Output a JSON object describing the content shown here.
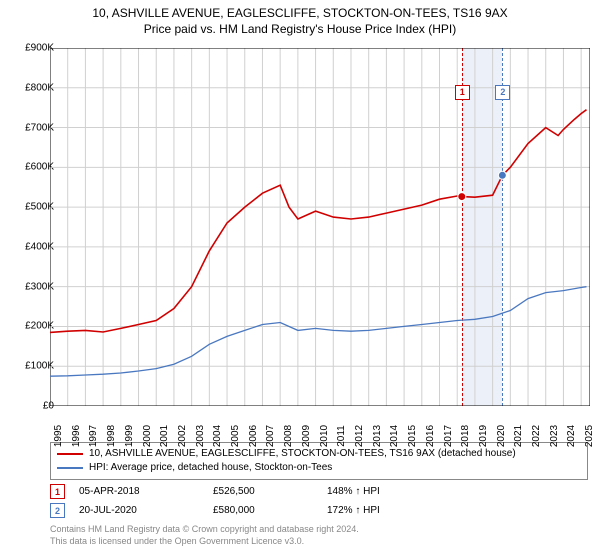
{
  "title_line1": "10, ASHVILLE AVENUE, EAGLESCLIFFE, STOCKTON-ON-TEES, TS16 9AX",
  "title_line2": "Price paid vs. HM Land Registry's House Price Index (HPI)",
  "chart": {
    "type": "line",
    "background_color": "#ffffff",
    "grid_color": "#d0d0d0",
    "xlim_years": [
      1995,
      2025.5
    ],
    "ylim": [
      0,
      900000
    ],
    "ytick_step": 100000,
    "yticks": [
      "£0",
      "£100K",
      "£200K",
      "£300K",
      "£400K",
      "£500K",
      "£600K",
      "£700K",
      "£800K",
      "£900K"
    ],
    "xticks": [
      "1995",
      "1996",
      "1997",
      "1998",
      "1999",
      "2000",
      "2001",
      "2002",
      "2003",
      "2004",
      "2005",
      "2006",
      "2007",
      "2008",
      "2009",
      "2010",
      "2011",
      "2012",
      "2013",
      "2014",
      "2015",
      "2016",
      "2017",
      "2018",
      "2019",
      "2020",
      "2021",
      "2022",
      "2023",
      "2024",
      "2025"
    ],
    "shaded_band": {
      "x_start": 2018.26,
      "x_end": 2020.55,
      "color": "#b8c9e6",
      "start_edge_color": "#d00000",
      "end_edge_color": "#4a78c0"
    },
    "markers_on_plot": [
      {
        "n": "1",
        "x": 2018.26,
        "y_flag": 790000,
        "dot_y": 526500,
        "color": "#d00000"
      },
      {
        "n": "2",
        "x": 2020.55,
        "y_flag": 790000,
        "dot_y": 580000,
        "color": "#4a78c0"
      }
    ],
    "series": [
      {
        "name": "property",
        "label": "10, ASHVILLE AVENUE, EAGLESCLIFFE, STOCKTON-ON-TEES, TS16 9AX (detached house)",
        "color": "#d00000",
        "line_width": 1.6,
        "points": [
          [
            1995,
            185000
          ],
          [
            1996,
            188000
          ],
          [
            1997,
            190000
          ],
          [
            1998,
            186000
          ],
          [
            1999,
            195000
          ],
          [
            2000,
            205000
          ],
          [
            2001,
            215000
          ],
          [
            2002,
            245000
          ],
          [
            2003,
            300000
          ],
          [
            2004,
            390000
          ],
          [
            2005,
            460000
          ],
          [
            2006,
            500000
          ],
          [
            2007,
            535000
          ],
          [
            2008,
            555000
          ],
          [
            2008.5,
            500000
          ],
          [
            2009,
            470000
          ],
          [
            2010,
            490000
          ],
          [
            2011,
            475000
          ],
          [
            2012,
            470000
          ],
          [
            2013,
            475000
          ],
          [
            2014,
            485000
          ],
          [
            2015,
            495000
          ],
          [
            2016,
            505000
          ],
          [
            2017,
            520000
          ],
          [
            2018,
            528000
          ],
          [
            2018.26,
            526500
          ],
          [
            2019,
            525000
          ],
          [
            2020,
            530000
          ],
          [
            2020.55,
            580000
          ],
          [
            2021,
            600000
          ],
          [
            2022,
            660000
          ],
          [
            2023,
            700000
          ],
          [
            2023.7,
            680000
          ],
          [
            2024,
            695000
          ],
          [
            2024.6,
            720000
          ],
          [
            2025,
            735000
          ],
          [
            2025.3,
            745000
          ]
        ]
      },
      {
        "name": "hpi",
        "label": "HPI: Average price, detached house, Stockton-on-Tees",
        "color": "#4a78c0",
        "line_width": 1.3,
        "points": [
          [
            1995,
            75000
          ],
          [
            1996,
            76000
          ],
          [
            1997,
            78000
          ],
          [
            1998,
            80000
          ],
          [
            1999,
            83000
          ],
          [
            2000,
            88000
          ],
          [
            2001,
            94000
          ],
          [
            2002,
            105000
          ],
          [
            2003,
            125000
          ],
          [
            2004,
            155000
          ],
          [
            2005,
            175000
          ],
          [
            2006,
            190000
          ],
          [
            2007,
            205000
          ],
          [
            2008,
            210000
          ],
          [
            2009,
            190000
          ],
          [
            2010,
            195000
          ],
          [
            2011,
            190000
          ],
          [
            2012,
            188000
          ],
          [
            2013,
            190000
          ],
          [
            2014,
            195000
          ],
          [
            2015,
            200000
          ],
          [
            2016,
            205000
          ],
          [
            2017,
            210000
          ],
          [
            2018,
            215000
          ],
          [
            2019,
            218000
          ],
          [
            2020,
            225000
          ],
          [
            2021,
            240000
          ],
          [
            2022,
            270000
          ],
          [
            2023,
            285000
          ],
          [
            2024,
            290000
          ],
          [
            2025,
            298000
          ],
          [
            2025.3,
            300000
          ]
        ]
      }
    ]
  },
  "legend": {
    "items": [
      {
        "color": "#d00000",
        "text": "10, ASHVILLE AVENUE, EAGLESCLIFFE, STOCKTON-ON-TEES, TS16 9AX (detached house)"
      },
      {
        "color": "#4a78c0",
        "text": "HPI: Average price, detached house, Stockton-on-Tees"
      }
    ]
  },
  "events": [
    {
      "n": "1",
      "color": "#d00000",
      "date": "05-APR-2018",
      "price": "£526,500",
      "hpi": "148% ↑ HPI"
    },
    {
      "n": "2",
      "color": "#4a78c0",
      "date": "20-JUL-2020",
      "price": "£580,000",
      "hpi": "172% ↑ HPI"
    }
  ],
  "footer_line1": "Contains HM Land Registry data © Crown copyright and database right 2024.",
  "footer_line2": "This data is licensed under the Open Government Licence v3.0."
}
